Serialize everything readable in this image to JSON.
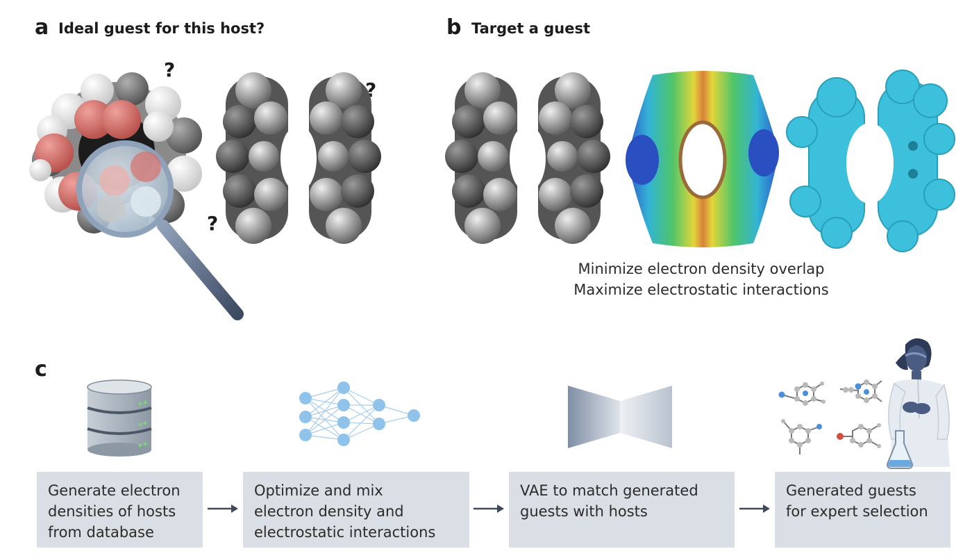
{
  "panel_a": {
    "letter": "a",
    "title": "Ideal guest for this host?",
    "marks": [
      "?",
      "?",
      "?"
    ]
  },
  "panel_b": {
    "letter": "b",
    "title": "Target a guest",
    "caption_line1": "Minimize electron density overlap",
    "caption_line2": "Maximize electrostatic interactions"
  },
  "panel_c": {
    "letter": "c",
    "steps": [
      {
        "text": "Generate electron\ndensities of hosts\nfrom database",
        "icon": "database-icon"
      },
      {
        "text": "Optimize and mix\nelectron density and\nelectrostatic interactions",
        "icon": "neural-network-icon"
      },
      {
        "text": "VAE to match generated\nguests with hosts",
        "icon": "vae-icon"
      },
      {
        "text": "Generated guests\nfor expert selection",
        "icon": "scientist-icon"
      }
    ]
  },
  "colors": {
    "step_box": "#d9dfe4",
    "network_node": "#8fc3ec",
    "surface_cyan": "#3cc0dc",
    "arrow": "#3e4a5a",
    "oxygen": "#d9716c"
  }
}
